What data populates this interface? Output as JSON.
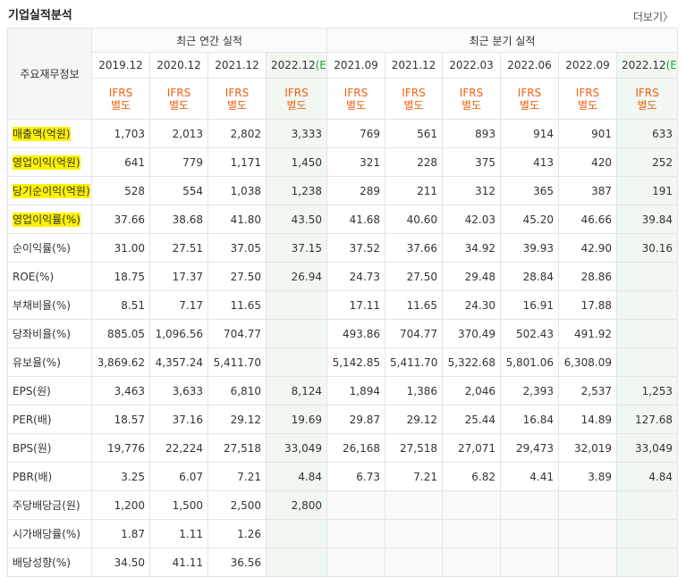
{
  "header": {
    "title": "기업실적분석",
    "more_link": "더보기"
  },
  "table": {
    "row_header": "주요재무정보",
    "groups": [
      {
        "label": "최근 연간 실적"
      },
      {
        "label": "최근 분기 실적"
      }
    ],
    "annual_dates": [
      "2019.12",
      "2020.12",
      "2021.12",
      "2022.12"
    ],
    "annual_est_mark": "(E)",
    "quarter_dates": [
      "2021.09",
      "2021.12",
      "2022.03",
      "2022.06",
      "2022.09",
      "2022.12"
    ],
    "quarter_est_mark": "(E)",
    "ifrs_line1": "IFRS",
    "ifrs_line2": "별도",
    "rows": [
      {
        "label": "매출액(억원)",
        "values": [
          "1,703",
          "2,013",
          "2,802",
          "3,333",
          "769",
          "561",
          "893",
          "914",
          "901",
          "633"
        ]
      },
      {
        "label": "영업이익(억원)",
        "values": [
          "641",
          "779",
          "1,171",
          "1,450",
          "321",
          "228",
          "375",
          "413",
          "420",
          "252"
        ]
      },
      {
        "label": "당기순이익(억원)",
        "values": [
          "528",
          "554",
          "1,038",
          "1,238",
          "289",
          "211",
          "312",
          "365",
          "387",
          "191"
        ]
      },
      {
        "label": "영업이익률(%)",
        "values": [
          "37.66",
          "38.68",
          "41.80",
          "43.50",
          "41.68",
          "40.60",
          "42.03",
          "45.20",
          "46.66",
          "39.84"
        ]
      },
      {
        "label": "순이익률(%)",
        "values": [
          "31.00",
          "27.51",
          "37.05",
          "37.15",
          "37.52",
          "37.66",
          "34.92",
          "39.93",
          "42.90",
          "30.16"
        ]
      },
      {
        "label": "ROE(%)",
        "values": [
          "18.75",
          "17.37",
          "27.50",
          "26.94",
          "24.73",
          "27.50",
          "29.48",
          "28.84",
          "28.86",
          ""
        ]
      },
      {
        "label": "부채비율(%)",
        "values": [
          "8.51",
          "7.17",
          "11.65",
          "",
          "17.11",
          "11.65",
          "24.30",
          "16.91",
          "17.88",
          ""
        ]
      },
      {
        "label": "당좌비율(%)",
        "values": [
          "885.05",
          "1,096.56",
          "704.77",
          "",
          "493.86",
          "704.77",
          "370.49",
          "502.43",
          "491.92",
          ""
        ]
      },
      {
        "label": "유보율(%)",
        "values": [
          "3,869.62",
          "4,357.24",
          "5,411.70",
          "",
          "5,142.85",
          "5,411.70",
          "5,322.68",
          "5,801.06",
          "6,308.09",
          ""
        ]
      },
      {
        "label": "EPS(원)",
        "values": [
          "3,463",
          "3,633",
          "6,810",
          "8,124",
          "1,894",
          "1,386",
          "2,046",
          "2,393",
          "2,537",
          "1,253"
        ]
      },
      {
        "label": "PER(배)",
        "values": [
          "18.57",
          "37.16",
          "29.12",
          "19.69",
          "29.87",
          "29.12",
          "25.44",
          "16.84",
          "14.89",
          "127.68"
        ]
      },
      {
        "label": "BPS(원)",
        "values": [
          "19,776",
          "22,224",
          "27,518",
          "33,049",
          "26,168",
          "27,518",
          "27,071",
          "29,473",
          "32,019",
          "33,049"
        ]
      },
      {
        "label": "PBR(배)",
        "values": [
          "3.25",
          "6.07",
          "7.21",
          "4.84",
          "6.73",
          "7.21",
          "6.82",
          "4.41",
          "3.89",
          "4.84"
        ]
      },
      {
        "label": "주당배당금(원)",
        "values": [
          "1,200",
          "1,500",
          "2,500",
          "2,800",
          "",
          "",
          "",
          "",
          "",
          ""
        ]
      },
      {
        "label": "시가배당률(%)",
        "values": [
          "1.87",
          "1.11",
          "1.26",
          "",
          "",
          "",
          "",
          "",
          "",
          ""
        ]
      },
      {
        "label": "배당성향(%)",
        "values": [
          "34.50",
          "41.11",
          "36.56",
          "",
          "",
          "",
          "",
          "",
          "",
          ""
        ]
      }
    ]
  },
  "colors": {
    "ifrs": "#ee6010",
    "estimate_bg": "#f0f8f1",
    "highlight": "#fff200",
    "estimate_mark": "#2a9d3c"
  }
}
